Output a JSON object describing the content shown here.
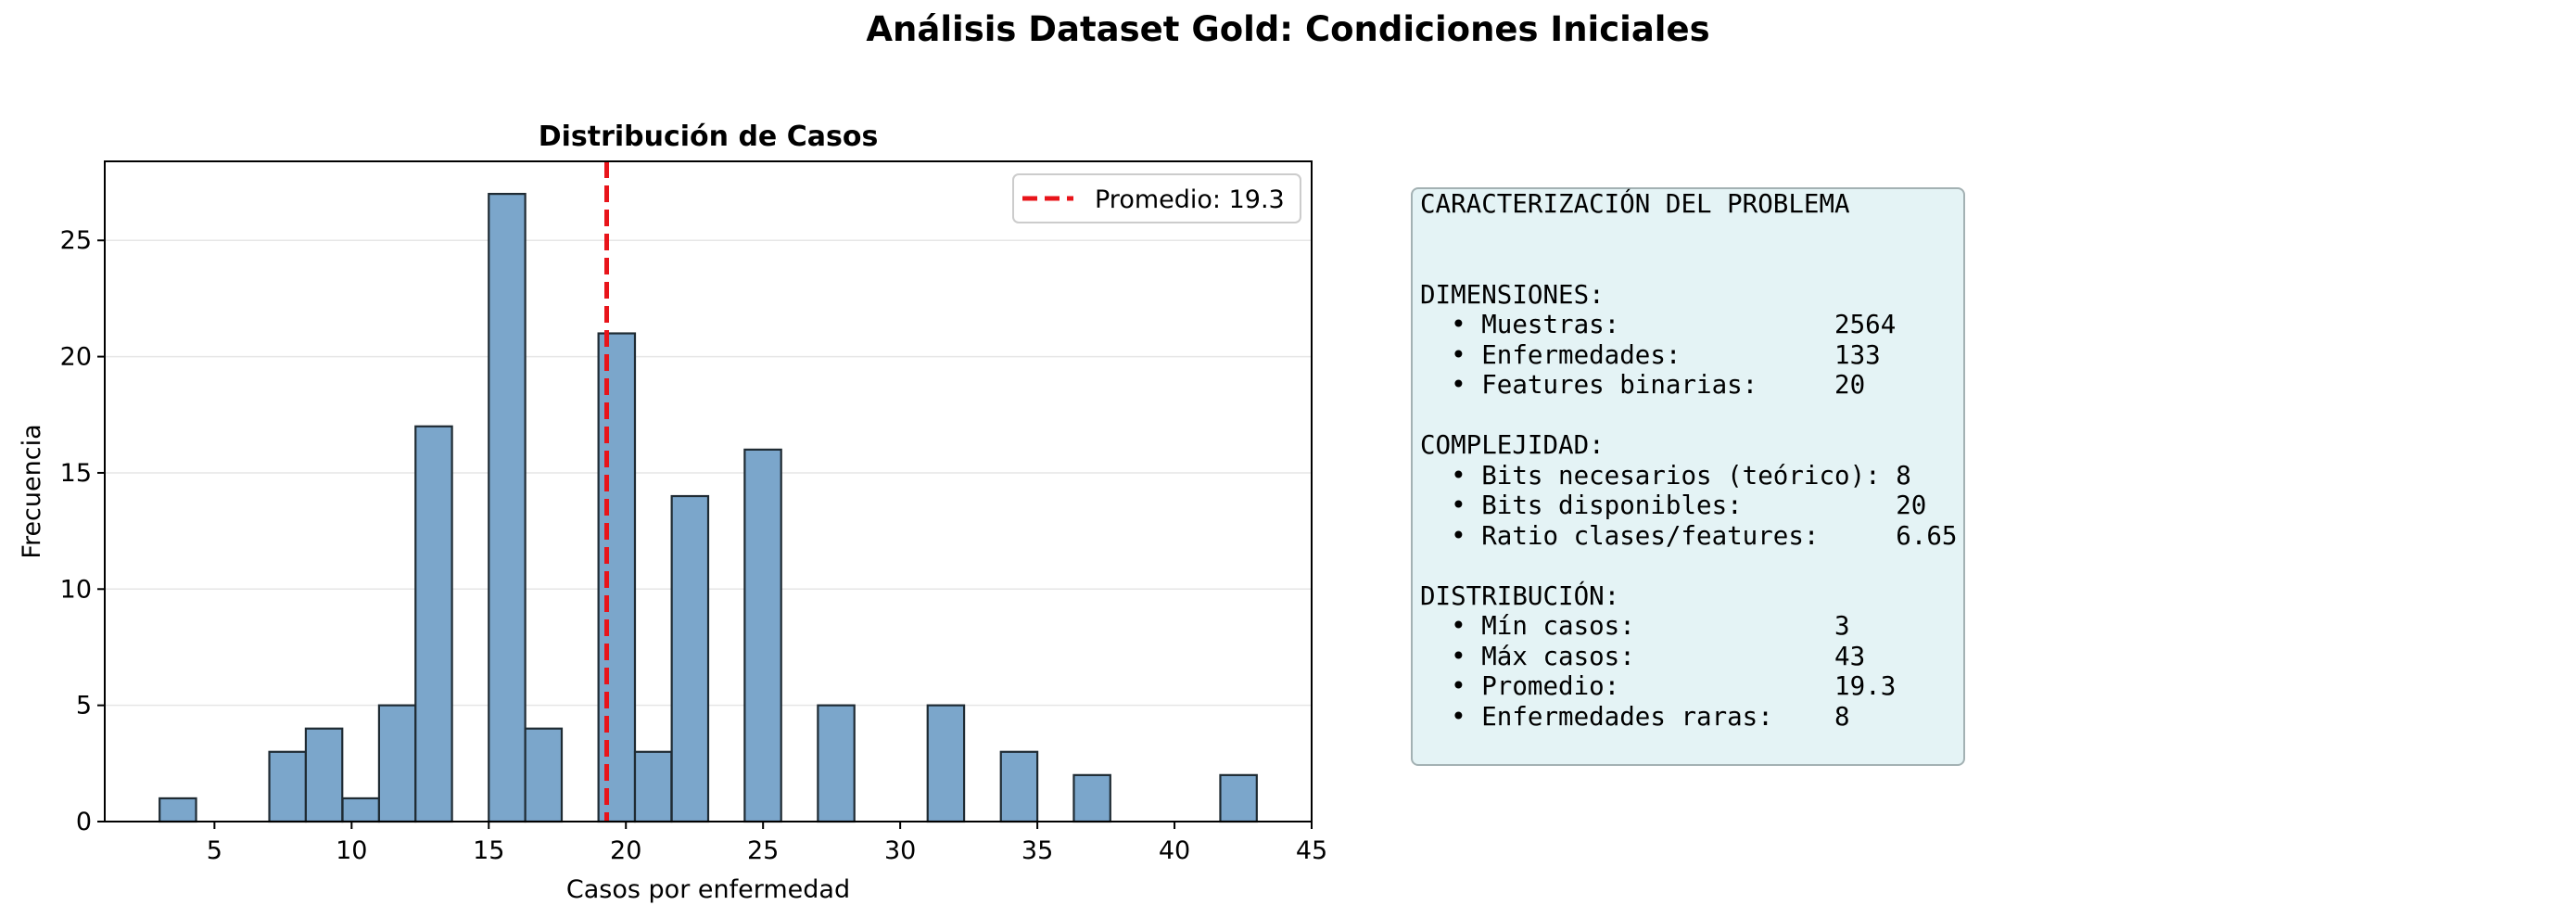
{
  "figure_title": "Análisis Dataset Gold: Condiciones Iniciales",
  "chart_data": {
    "type": "bar",
    "title": "Distribución de Casos",
    "xlabel": "Casos por enfermedad",
    "ylabel": "Frecuencia",
    "xlim": [
      1,
      45
    ],
    "ylim": [
      0,
      28.4
    ],
    "xticks": [
      5,
      10,
      15,
      20,
      25,
      30,
      35,
      40,
      45
    ],
    "yticks": [
      0,
      5,
      10,
      15,
      20,
      25
    ],
    "grid": "horizontal",
    "bin_width": 1.33,
    "bins": [
      {
        "start": 3.0,
        "value": 1
      },
      {
        "start": 7.0,
        "value": 3
      },
      {
        "start": 8.33,
        "value": 4
      },
      {
        "start": 9.67,
        "value": 1
      },
      {
        "start": 11.0,
        "value": 5
      },
      {
        "start": 12.33,
        "value": 17
      },
      {
        "start": 15.0,
        "value": 27
      },
      {
        "start": 16.33,
        "value": 4
      },
      {
        "start": 19.0,
        "value": 21
      },
      {
        "start": 20.33,
        "value": 3
      },
      {
        "start": 21.67,
        "value": 14
      },
      {
        "start": 24.33,
        "value": 16
      },
      {
        "start": 27.0,
        "value": 5
      },
      {
        "start": 31.0,
        "value": 5
      },
      {
        "start": 33.67,
        "value": 3
      },
      {
        "start": 36.33,
        "value": 2
      },
      {
        "start": 41.67,
        "value": 2
      }
    ],
    "bar_color": "#7ba6cb",
    "bar_edge_color": "#1f2b33",
    "mean_line": {
      "value": 19.3,
      "label": "Promedio: 19.3",
      "color": "#e8141a"
    },
    "legend_position": "top-right"
  },
  "info_box": {
    "lines": [
      "CARACTERIZACIÓN DEL PROBLEMA",
      "",
      "",
      "DIMENSIONES:",
      "  • Muestras:              2564",
      "  • Enfermedades:          133",
      "  • Features binarias:     20",
      "",
      "COMPLEJIDAD:",
      "  • Bits necesarios (teórico): 8",
      "  • Bits disponibles:          20",
      "  • Ratio clases/features:     6.65",
      "",
      "DISTRIBUCIÓN:",
      "  • Mín casos:             3",
      "  • Máx casos:             43",
      "  • Promedio:              19.3",
      "  • Enfermedades raras:    8"
    ]
  }
}
